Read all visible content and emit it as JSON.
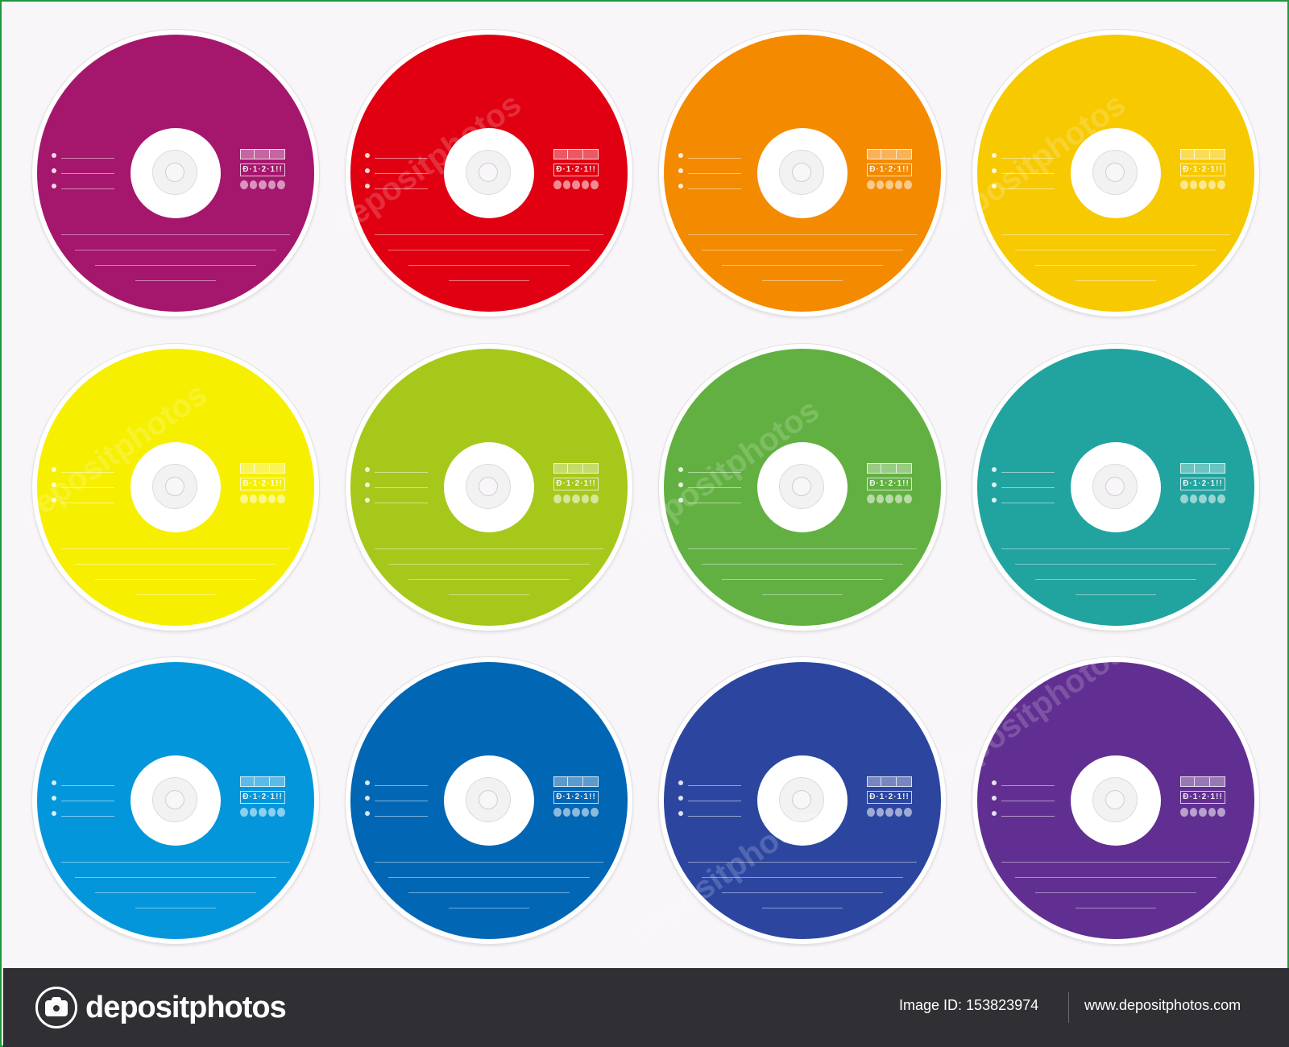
{
  "discs": [
    {
      "color": "#a5166d"
    },
    {
      "color": "#e00012"
    },
    {
      "color": "#f48a00"
    },
    {
      "color": "#f7c900"
    },
    {
      "color": "#f7ef00"
    },
    {
      "color": "#a6c81b"
    },
    {
      "color": "#62b041"
    },
    {
      "color": "#21a39f"
    },
    {
      "color": "#0496db"
    },
    {
      "color": "#0166b4"
    },
    {
      "color": "#2c46a0"
    },
    {
      "color": "#612f91"
    }
  ],
  "disc_format_label": "Đ·1·2·1!!",
  "watermark_text": "depositphotos",
  "footer": {
    "brand": "depositphotos",
    "image_id_label": "Image ID:",
    "image_id": "153823974",
    "url": "www.depositphotos.com",
    "background": "#302f33"
  }
}
